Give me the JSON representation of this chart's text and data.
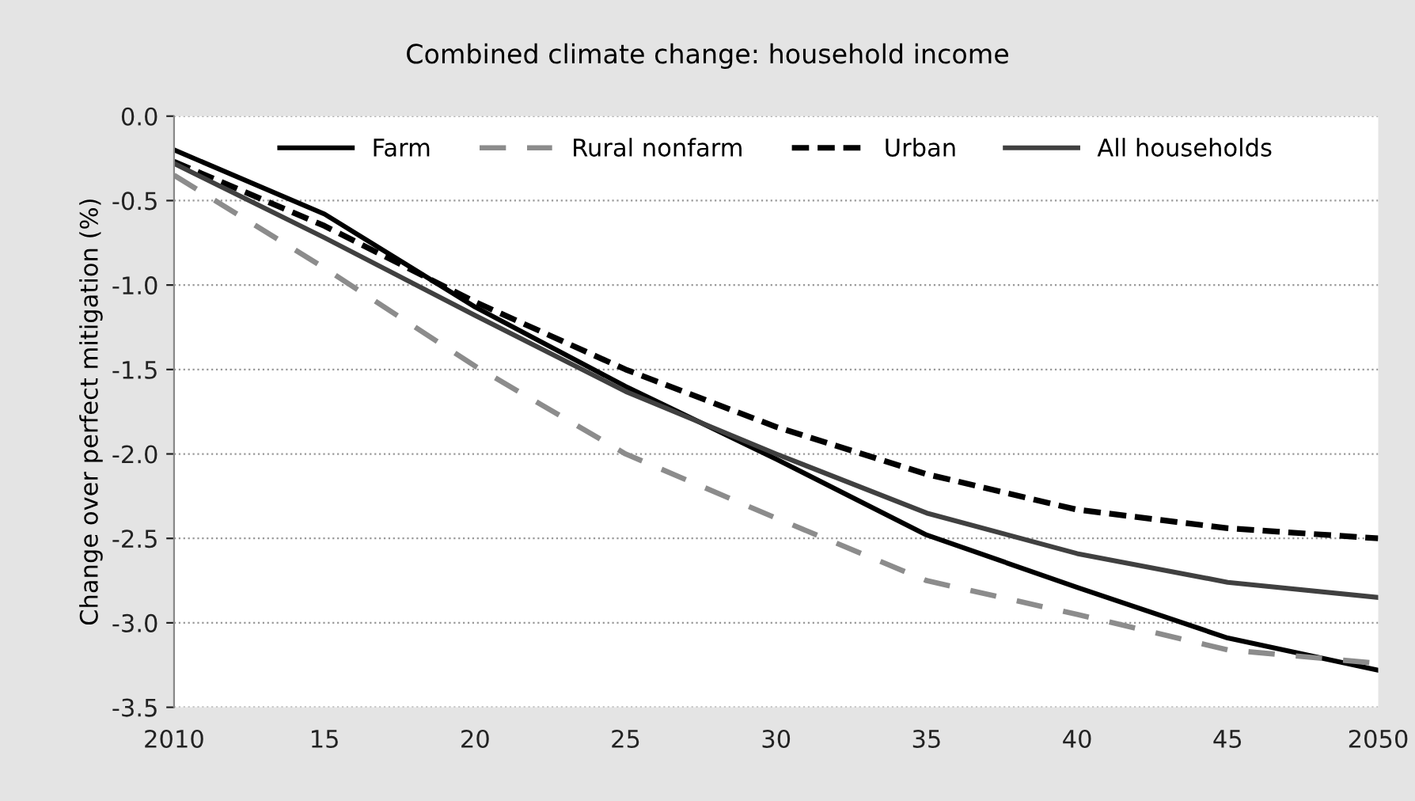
{
  "chart_data": {
    "type": "line",
    "title": "Combined climate change: household income",
    "ylabel": "Change over perfect mitigation (%)",
    "x": [
      2010,
      2015,
      2020,
      2025,
      2030,
      2035,
      2040,
      2045,
      2050
    ],
    "series": [
      {
        "name": "Farm",
        "color": "#000000",
        "line_style": "solid",
        "values": [
          -0.2,
          -0.58,
          -1.13,
          -1.6,
          -2.03,
          -2.48,
          -2.79,
          -3.09,
          -3.28
        ]
      },
      {
        "name": "Rural nonfarm",
        "color": "#8c8c8c",
        "line_style": "dashed",
        "values": [
          -0.35,
          -0.9,
          -1.48,
          -2.0,
          -2.38,
          -2.75,
          -2.95,
          -3.16,
          -3.24
        ]
      },
      {
        "name": "Urban",
        "color": "#000000",
        "line_style": "dotted",
        "values": [
          -0.27,
          -0.65,
          -1.1,
          -1.5,
          -1.84,
          -2.12,
          -2.33,
          -2.44,
          -2.5
        ]
      },
      {
        "name": "All households",
        "color": "#404040",
        "line_style": "solid",
        "values": [
          -0.28,
          -0.72,
          -1.18,
          -1.63,
          -2.0,
          -2.35,
          -2.59,
          -2.76,
          -2.85
        ]
      }
    ],
    "xlim": [
      2010,
      2050
    ],
    "xticks": [
      2010,
      {
        "value": 2015,
        "label": "15"
      },
      {
        "value": 2020,
        "label": "20"
      },
      {
        "value": 2025,
        "label": "25"
      },
      {
        "value": 2030,
        "label": "30"
      },
      {
        "value": 2035,
        "label": "35"
      },
      {
        "value": 2040,
        "label": "40"
      },
      {
        "value": 2045,
        "label": "45"
      },
      2050
    ],
    "ylim": [
      -3.5,
      0
    ],
    "yticks": [
      {
        "value": 0,
        "label": "0.0"
      },
      {
        "value": -0.5,
        "label": "-0.5"
      },
      {
        "value": -1,
        "label": "-1.0"
      },
      {
        "value": -1.5,
        "label": "-1.5"
      },
      {
        "value": -2,
        "label": "-2.0"
      },
      {
        "value": -2.5,
        "label": "-2.5"
      },
      {
        "value": -3,
        "label": "-3.0"
      },
      {
        "value": -3.5,
        "label": "-3.5"
      }
    ],
    "grid": "y",
    "legend": "top",
    "marker": "none"
  }
}
